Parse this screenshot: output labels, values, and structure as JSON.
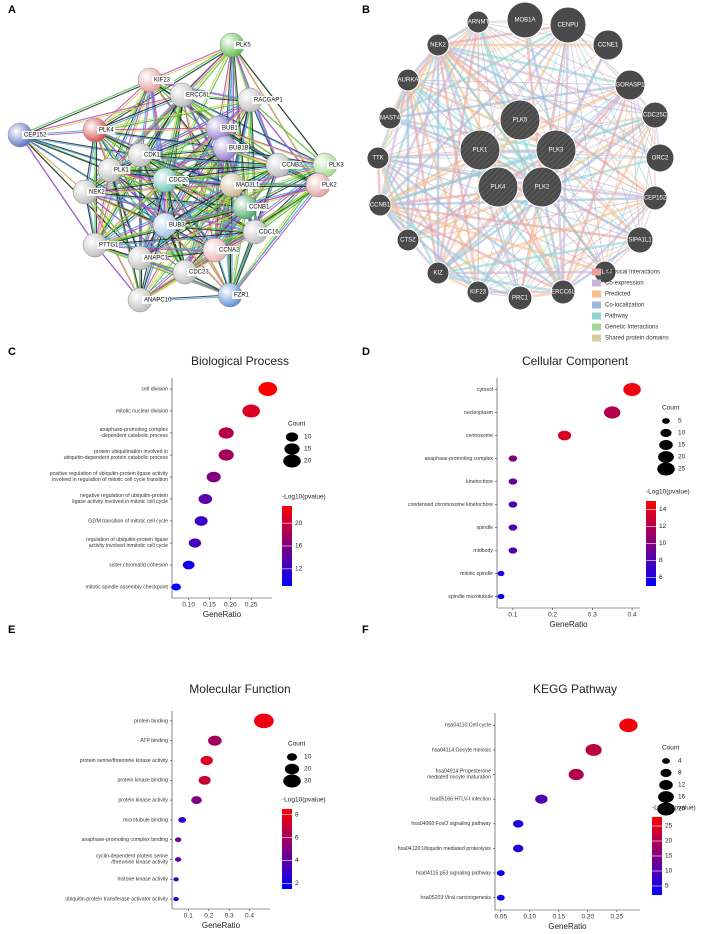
{
  "panel_labels": [
    "A",
    "B",
    "C",
    "D",
    "E",
    "F"
  ],
  "network_a": {
    "nodes": [
      "PLK5",
      "KIF23",
      "ERCC6L",
      "RACGAP1",
      "CEP152",
      "PLK4",
      "BUB1",
      "BUB1B",
      "CDK1",
      "CCNB2",
      "PLK3",
      "PLK1",
      "NEK2",
      "CDC20",
      "MAD2L1",
      "CCNB1",
      "PLK2",
      "CDC16",
      "BUB3",
      "CCNA2",
      "PTTG1",
      "ANAPC1",
      "CDC23",
      "FZR1",
      "ANAPC10"
    ]
  },
  "network_b": {
    "nodes": [
      "PLK5",
      "PLK1",
      "PLK3",
      "PLK4",
      "PLK2",
      "CARNMT1",
      "MOB1A",
      "CENPU",
      "NEK2",
      "CCNE1",
      "AURKA",
      "GORASP1",
      "MAST4",
      "CDC25C",
      "TTK",
      "ORC2",
      "CCNB1",
      "CEP152",
      "CTSZ",
      "SIPA1L1",
      "KIZ",
      "SLX4",
      "KIF23",
      "PRC1",
      "ERCC6L"
    ],
    "legend": [
      {
        "label": "Physical Interactions",
        "color": "#e8a0a0"
      },
      {
        "label": "Co-expression",
        "color": "#c9b3d6"
      },
      {
        "label": "Predicted",
        "color": "#f5c08e"
      },
      {
        "label": "Co-localization",
        "color": "#a0b8dc"
      },
      {
        "label": "Pathway",
        "color": "#8fd3d6"
      },
      {
        "label": "Genetic Interactions",
        "color": "#9ed89e"
      },
      {
        "label": "Shared protein domains",
        "color": "#d8d09c"
      }
    ]
  },
  "chart_data": [
    {
      "type": "dot",
      "title": "Biological Process",
      "xlabel": "GeneRatio",
      "categories": [
        "cell division",
        "mitotic nuclear division",
        "anaphase-promoting complex\n-dependent catabolic process",
        "protein ubiquitination involved in\nubiquitin-dependent protein catabolic process",
        "positive regulation of ubiquitin-protein ligase activity\ninvolved in regulation of mitotic cell cycle transition",
        "negative regulation of ubiquitin-protein\nligase activity involved in mitotic cell cycle",
        "G2/M transition of mitotic cell cycle",
        "regulation of ubiquitin-protein ligase\nactivity involved inmitotic cell cycle",
        "sister chromatid cohesion",
        "mitotic spindle assembly checkpoint"
      ],
      "values": [
        0.29,
        0.25,
        0.19,
        0.19,
        0.16,
        0.14,
        0.13,
        0.115,
        0.1,
        0.07
      ],
      "counts": [
        23,
        20,
        15,
        15,
        13,
        12,
        11,
        10,
        9,
        6
      ],
      "log_p": [
        23,
        21,
        19,
        18,
        16,
        14,
        12,
        13,
        10,
        9
      ],
      "xlim": [
        0.06,
        0.3
      ],
      "xticks": [
        {
          "value": 0.1,
          "label": "0.10"
        },
        0.15,
        {
          "value": 0.2,
          "label": "0.20"
        },
        0.25
      ],
      "size_legend": {
        "title": "Count",
        "ticks": [
          10,
          15,
          20
        ]
      },
      "color_legend": {
        "title": "-Log10(pvalue)",
        "ticks": [
          12,
          16,
          20
        ],
        "lim": [
          9,
          23
        ],
        "low": "#0000ff",
        "high": "#ff0000"
      }
    },
    {
      "type": "dot",
      "title": "Cellular Component",
      "xlabel": "GeneRatio",
      "categories": [
        "cytosol",
        "nucleoplasm",
        "centrosome",
        "anaphase-promoting complex",
        "kinetochore",
        "condensed chromosome kinetochore",
        "spindle",
        "midbody",
        "mitotic spindle",
        "spindle microtubule"
      ],
      "values": [
        0.4,
        0.35,
        0.23,
        0.1,
        0.1,
        0.1,
        0.1,
        0.1,
        0.07,
        0.07
      ],
      "counts": [
        25,
        22,
        14,
        6,
        6,
        6,
        6,
        6,
        4,
        4
      ],
      "log_p": [
        14.5,
        12,
        13.5,
        10,
        9,
        8,
        8,
        8.5,
        6,
        5.5
      ],
      "xlim": [
        0.06,
        0.42
      ],
      "xticks": [
        0.1,
        0.2,
        0.3,
        0.4
      ],
      "size_legend": {
        "title": "Count",
        "ticks": [
          5,
          10,
          15,
          20,
          25
        ]
      },
      "color_legend": {
        "title": "-Log10(pvalue)",
        "ticks": [
          6,
          8,
          10,
          12,
          14
        ],
        "lim": [
          5,
          15
        ],
        "low": "#0000ff",
        "high": "#ff0000"
      }
    },
    {
      "type": "dot",
      "title": "Molecular Function",
      "xlabel": "GeneRatio",
      "categories": [
        "protein binding",
        "ATP binding",
        "protein serine/threonine kinase activity",
        "protein kinase binding",
        "protein kinase activity",
        "microtubule binding",
        "anaphase-promoting complex binding",
        "cyclin-dependent protein serine\n/threonine kinase activity",
        "histone kinase activity",
        "ubiquitin-protein transferase activator activity"
      ],
      "values": [
        0.47,
        0.23,
        0.19,
        0.18,
        0.14,
        0.07,
        0.05,
        0.05,
        0.04,
        0.04
      ],
      "counts": [
        38,
        18,
        15,
        14,
        11,
        6,
        4,
        4,
        3,
        3
      ],
      "log_p": [
        8,
        6,
        7.5,
        7,
        5,
        3,
        4.5,
        4,
        3,
        2
      ],
      "xlim": [
        0.02,
        0.5
      ],
      "xticks": [
        0.1,
        0.2,
        0.3,
        0.4
      ],
      "size_legend": {
        "title": "Count",
        "ticks": [
          10,
          20,
          30
        ]
      },
      "color_legend": {
        "title": "-Log10(pvalue)",
        "ticks": [
          2,
          4,
          6,
          8
        ],
        "lim": [
          1.5,
          8.5
        ],
        "low": "#0000ff",
        "high": "#ff0000"
      }
    },
    {
      "type": "dot",
      "title": "KEGG Pathway",
      "xlabel": "GeneRatio",
      "categories": [
        "hsa04110:Cell cycle",
        "hsa04114:Oocyte meiosis",
        "hsa04914:Progesterone\nmediated oocyte maturation",
        "hsa05166:HTLV-I infection",
        "hsa04068:FoxO signaling pathway",
        "hsa04120:Ubiquitin mediated proteolysis",
        "hsa04115:p53 signaling pathway",
        "hsa05203:Viral carcinogenesis"
      ],
      "values": [
        0.27,
        0.21,
        0.18,
        0.12,
        0.08,
        0.08,
        0.05,
        0.05
      ],
      "counts": [
        22,
        17,
        15,
        10,
        7,
        7,
        4,
        4
      ],
      "log_p": [
        27,
        21,
        20,
        10,
        5,
        6,
        3,
        3
      ],
      "xlim": [
        0.04,
        0.29
      ],
      "xticks": [
        0.05,
        {
          "value": 0.1,
          "label": "0.10"
        },
        0.15,
        {
          "value": 0.2,
          "label": "0.20"
        },
        0.25
      ],
      "size_legend": {
        "title": "Count",
        "ticks": [
          4,
          8,
          12,
          16,
          20
        ]
      },
      "color_legend": {
        "title": "-Log10(pvalue)",
        "ticks": [
          5,
          10,
          15,
          20,
          25
        ],
        "lim": [
          2,
          28
        ],
        "low": "#0000ff",
        "high": "#ff0000"
      }
    }
  ]
}
